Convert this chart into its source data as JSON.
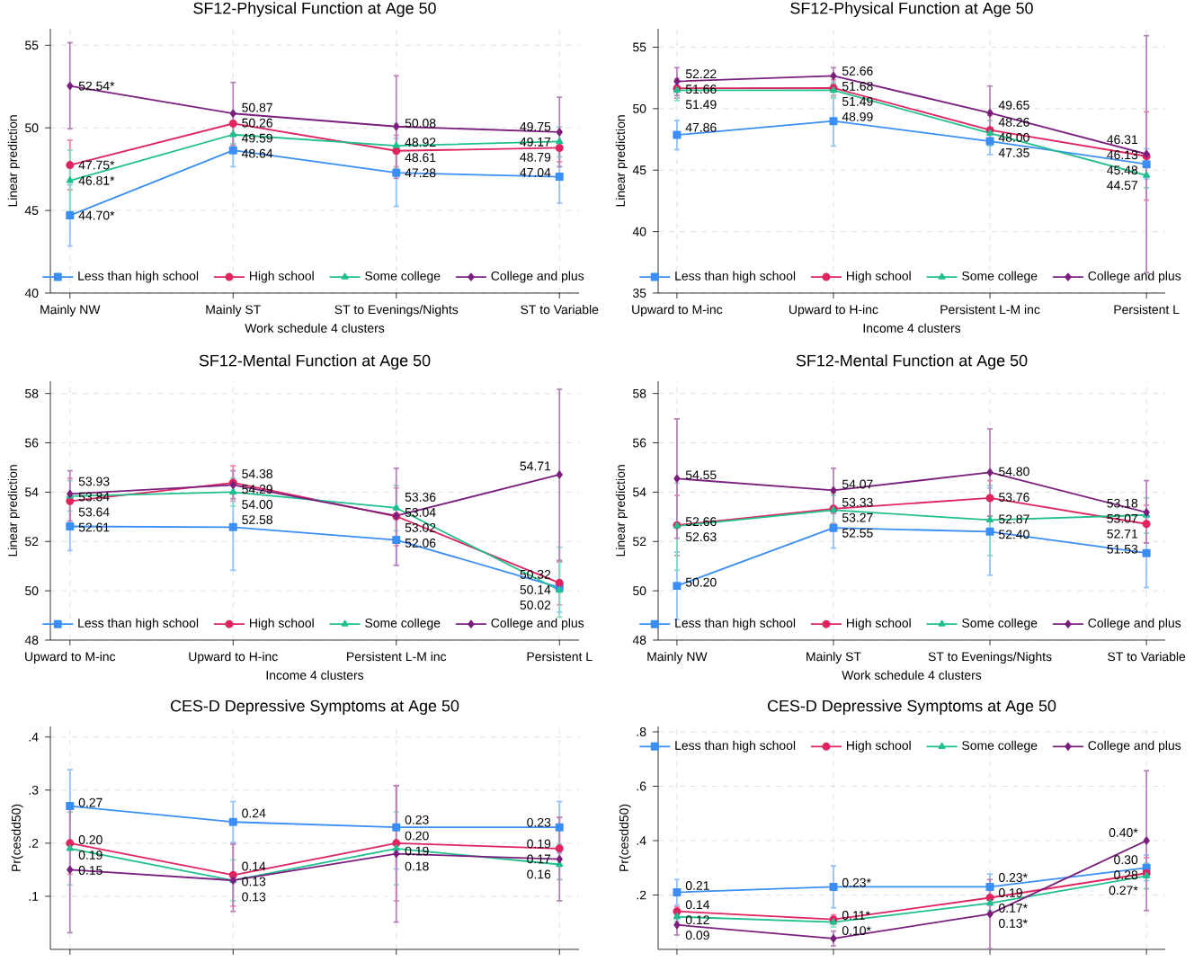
{
  "chart_data": [
    {
      "type": "line",
      "title": "SF12-Physical Function at Age 50",
      "xlabel": "Work schedule 4 clusters",
      "ylabel": "Linear prediction",
      "categories": [
        "Mainly NW",
        "Mainly ST",
        "ST to Evenings/Nights",
        "ST to Variable"
      ],
      "ylim": [
        40,
        56
      ],
      "yticks": [
        40,
        45,
        50,
        55
      ],
      "grid": true,
      "legend": "bottom",
      "series": [
        {
          "name": "Less than high school",
          "color": "#3a8ef6",
          "marker": "square",
          "values": [
            44.7,
            48.64,
            47.28,
            47.04
          ],
          "errors": [
            [
              42.8,
              46.6
            ],
            [
              47.6,
              49.7
            ],
            [
              45.2,
              49.4
            ],
            [
              45.4,
              48.7
            ]
          ],
          "value_labels": [
            "44.70*",
            "48.64",
            "47.28",
            "47.04"
          ]
        },
        {
          "name": "High school",
          "color": "#e0245e",
          "marker": "circle",
          "values": [
            47.75,
            50.26,
            48.61,
            48.79
          ],
          "errors": [
            [
              46.2,
              49.3
            ],
            [
              49.6,
              50.9
            ],
            [
              47.6,
              49.6
            ],
            [
              47.9,
              49.7
            ]
          ],
          "value_labels": [
            "47.75*",
            "50.26",
            "48.61",
            "48.79"
          ]
        },
        {
          "name": "Some college",
          "color": "#1fbf8f",
          "marker": "triangle",
          "values": [
            46.81,
            49.59,
            48.92,
            49.17
          ],
          "errors": [
            [
              44.9,
              48.7
            ],
            [
              49.0,
              50.2
            ],
            [
              47.5,
              50.3
            ],
            [
              48.2,
              50.1
            ]
          ],
          "value_labels": [
            "46.81*",
            "49.59",
            "48.92",
            "49.17"
          ]
        },
        {
          "name": "College and plus",
          "color": "#7b1f7f",
          "marker": "diamond",
          "values": [
            52.54,
            50.87,
            50.08,
            49.75
          ],
          "errors": [
            [
              49.9,
              55.2
            ],
            [
              48.9,
              52.8
            ],
            [
              46.9,
              53.2
            ],
            [
              47.6,
              51.9
            ]
          ],
          "value_labels": [
            "52.54*",
            "50.87",
            "50.08",
            "49.75"
          ]
        }
      ]
    },
    {
      "type": "line",
      "title": "SF12-Physical Function at Age 50",
      "xlabel": "Income 4 clusters",
      "ylabel": "Linear prediction",
      "categories": [
        "Upward to M-inc",
        "Upward to H-inc",
        "Persistent L-M inc",
        "Persistent L"
      ],
      "ylim": [
        35,
        56.5
      ],
      "yticks": [
        35,
        40,
        45,
        50,
        55
      ],
      "grid": true,
      "legend": "bottom",
      "series": [
        {
          "name": "Less than high school",
          "color": "#3a8ef6",
          "marker": "square",
          "values": [
            47.86,
            48.99,
            47.35,
            45.48
          ],
          "errors": [
            [
              46.6,
              49.1
            ],
            [
              46.9,
              51.1
            ],
            [
              46.2,
              48.5
            ],
            [
              44.2,
              46.8
            ]
          ],
          "value_labels": [
            "47.86",
            "48.99",
            "47.35",
            "45.48"
          ]
        },
        {
          "name": "High school",
          "color": "#e0245e",
          "marker": "circle",
          "values": [
            51.66,
            51.68,
            48.26,
            46.13
          ],
          "errors": [
            [
              50.8,
              52.5
            ],
            [
              51.0,
              52.4
            ],
            [
              47.0,
              49.5
            ],
            [
              42.5,
              49.8
            ]
          ],
          "value_labels": [
            "51.66",
            "51.68",
            "48.26",
            "46.13"
          ]
        },
        {
          "name": "Some college",
          "color": "#1fbf8f",
          "marker": "triangle",
          "values": [
            51.49,
            51.49,
            48.0,
            44.57
          ],
          "errors": [
            [
              50.6,
              52.4
            ],
            [
              50.8,
              52.2
            ],
            [
              46.9,
              49.1
            ],
            [
              43.5,
              45.6
            ]
          ],
          "value_labels": [
            "51.49",
            "51.49",
            "48.00",
            "44.57"
          ]
        },
        {
          "name": "College and plus",
          "color": "#7b1f7f",
          "marker": "diamond",
          "values": [
            52.22,
            52.66,
            49.65,
            46.31
          ],
          "errors": [
            [
              51.0,
              53.4
            ],
            [
              51.9,
              53.4
            ],
            [
              47.4,
              51.9
            ],
            [
              36.6,
              56.0
            ]
          ],
          "value_labels": [
            "52.22",
            "52.66",
            "49.65",
            "46.31"
          ]
        }
      ]
    },
    {
      "type": "line",
      "title": "SF12-Mental Function at Age 50",
      "xlabel": "Income 4 clusters",
      "ylabel": "Linear prediction",
      "categories": [
        "Upward to M-inc",
        "Upward to H-inc",
        "Persistent L-M inc",
        "Persistent L"
      ],
      "ylim": [
        48,
        58.5
      ],
      "yticks": [
        48,
        50,
        52,
        54,
        56,
        58
      ],
      "grid": true,
      "legend": "bottom",
      "series": [
        {
          "name": "Less than high school",
          "color": "#3a8ef6",
          "marker": "square",
          "values": [
            52.61,
            52.58,
            52.06,
            50.14
          ],
          "errors": [
            [
              51.6,
              53.6
            ],
            [
              50.8,
              54.4
            ],
            [
              51.0,
              53.1
            ],
            [
              49.1,
              51.2
            ]
          ],
          "value_labels": [
            "52.61",
            "52.58",
            "52.06",
            "50.14"
          ]
        },
        {
          "name": "High school",
          "color": "#e0245e",
          "marker": "circle",
          "values": [
            53.64,
            54.38,
            53.02,
            50.32
          ],
          "errors": [
            [
              52.7,
              54.6
            ],
            [
              53.6,
              55.1
            ],
            [
              51.8,
              54.2
            ],
            [
              49.4,
              51.2
            ]
          ],
          "value_labels": [
            "53.64",
            "54.38",
            "53.02",
            "50.32"
          ]
        },
        {
          "name": "Some college",
          "color": "#1fbf8f",
          "marker": "triangle",
          "values": [
            53.84,
            54.0,
            53.36,
            50.02
          ],
          "errors": [
            [
              53.2,
              54.5
            ],
            [
              53.4,
              54.6
            ],
            [
              52.4,
              54.3
            ],
            [
              48.9,
              51.8
            ]
          ],
          "value_labels": [
            "53.84",
            "54.00",
            "53.36",
            "50.02"
          ]
        },
        {
          "name": "College and plus",
          "color": "#7b1f7f",
          "marker": "diamond",
          "values": [
            53.93,
            54.29,
            53.04,
            54.71
          ],
          "errors": [
            [
              52.8,
              54.9
            ],
            [
              53.7,
              54.9
            ],
            [
              51.0,
              55.0
            ],
            [
              51.2,
              58.2
            ]
          ],
          "value_labels": [
            "53.93",
            "54.29",
            "53.04",
            "54.71"
          ]
        }
      ]
    },
    {
      "type": "line",
      "title": "SF12-Mental Function at Age 50",
      "xlabel": "Work schedule 4 clusters",
      "ylabel": "Linear prediction",
      "categories": [
        "Mainly NW",
        "Mainly ST",
        "ST to Evenings/Nights",
        "ST to Variable"
      ],
      "ylim": [
        48,
        58.5
      ],
      "yticks": [
        48,
        50,
        52,
        54,
        56,
        58
      ],
      "grid": true,
      "legend": "bottom",
      "series": [
        {
          "name": "Less than high school",
          "color": "#3a8ef6",
          "marker": "square",
          "values": [
            50.2,
            52.55,
            52.4,
            51.53
          ],
          "errors": [
            [
              48.8,
              51.6
            ],
            [
              51.7,
              53.4
            ],
            [
              50.6,
              54.2
            ],
            [
              50.1,
              53.0
            ]
          ],
          "value_labels": [
            "50.20",
            "52.55",
            "52.40",
            "51.53"
          ]
        },
        {
          "name": "High school",
          "color": "#e0245e",
          "marker": "circle",
          "values": [
            52.66,
            53.33,
            53.76,
            52.71
          ],
          "errors": [
            [
              51.4,
              53.9
            ],
            [
              52.7,
              54.0
            ],
            [
              53.0,
              54.5
            ],
            [
              51.9,
              53.5
            ]
          ],
          "value_labels": [
            "52.66",
            "53.33",
            "53.76",
            "52.71"
          ]
        },
        {
          "name": "Some college",
          "color": "#1fbf8f",
          "marker": "triangle",
          "values": [
            52.63,
            53.27,
            52.87,
            53.07
          ],
          "errors": [
            [
              50.8,
              54.4
            ],
            [
              52.6,
              53.9
            ],
            [
              51.4,
              54.3
            ],
            [
              52.3,
              53.8
            ]
          ],
          "value_labels": [
            "52.63",
            "53.27",
            "52.87",
            "53.07"
          ]
        },
        {
          "name": "College and plus",
          "color": "#7b1f7f",
          "marker": "diamond",
          "values": [
            54.55,
            54.07,
            54.8,
            53.18
          ],
          "errors": [
            [
              52.1,
              57.0
            ],
            [
              53.1,
              55.0
            ],
            [
              53.0,
              56.6
            ],
            [
              51.9,
              54.5
            ]
          ],
          "value_labels": [
            "54.55",
            "54.07",
            "54.80",
            "53.18"
          ]
        }
      ]
    },
    {
      "type": "line",
      "title": "CES-D Depressive Symptoms at Age 50",
      "ylabel": "Pr(cesdd50)",
      "categories": [
        null,
        null,
        null,
        null
      ],
      "tick_labels": "y",
      "ylim": [
        0,
        0.42
      ],
      "yticks": [
        {
          "value": 0.1,
          "label": ".1"
        },
        {
          "value": 0.2,
          "label": ".2"
        },
        {
          "value": 0.3,
          "label": ".3"
        },
        {
          "value": 0.4,
          "label": ".4"
        }
      ],
      "grid": true,
      "legend": false,
      "series": [
        {
          "color": "#3a8ef6",
          "marker": "square",
          "values": [
            0.27,
            0.24,
            0.23,
            0.23
          ],
          "errors": [
            [
              0.2,
              0.34
            ],
            [
              0.2,
              0.28
            ],
            [
              0.15,
              0.31
            ],
            [
              0.18,
              0.28
            ]
          ],
          "value_labels": [
            "0.27",
            "0.24",
            "0.23",
            "0.23"
          ]
        },
        {
          "color": "#e0245e",
          "marker": "circle",
          "values": [
            0.2,
            0.14,
            0.2,
            0.19
          ],
          "errors": [
            [
              0.14,
              0.26
            ],
            [
              0.08,
              0.2
            ],
            [
              0.09,
              0.31
            ],
            [
              0.13,
              0.25
            ]
          ],
          "value_labels": [
            "0.20",
            "0.14",
            "0.20",
            "0.19"
          ]
        },
        {
          "color": "#1fbf8f",
          "marker": "triangle",
          "values": [
            0.19,
            0.13,
            0.19,
            0.16
          ],
          "errors": [
            [
              0.12,
              0.26
            ],
            [
              0.09,
              0.17
            ],
            [
              0.12,
              0.26
            ],
            [
              0.13,
              0.2
            ]
          ],
          "value_labels": [
            "0.19",
            "0.13",
            "0.19",
            "0.16"
          ]
        },
        {
          "color": "#7b1f7f",
          "marker": "diamond",
          "values": [
            0.15,
            0.13,
            0.18,
            0.17
          ],
          "errors": [
            [
              0.03,
              0.27
            ],
            [
              0.07,
              0.2
            ],
            [
              0.05,
              0.31
            ],
            [
              0.09,
              0.25
            ]
          ],
          "value_labels": [
            "0.15",
            "0.13",
            "0.18",
            "0.17"
          ]
        }
      ]
    },
    {
      "type": "line",
      "title": "CES-D Depressive Symptoms at Age 50",
      "ylabel": "Pr(cesdd50)",
      "categories": [
        null,
        null,
        null,
        null
      ],
      "tick_labels": "y",
      "ylim": [
        0,
        0.82
      ],
      "yticks": [
        {
          "value": 0.2,
          "label": ".2"
        },
        {
          "value": 0.4,
          "label": ".4"
        },
        {
          "value": 0.6,
          "label": ".6"
        },
        {
          "value": 0.8,
          "label": ".8"
        }
      ],
      "grid": true,
      "legend": "top",
      "series": [
        {
          "name": "Less than high school",
          "color": "#3a8ef6",
          "marker": "square",
          "values": [
            0.21,
            0.23,
            0.23,
            0.3
          ],
          "errors": [
            [
              0.16,
              0.26
            ],
            [
              0.15,
              0.31
            ],
            [
              0.18,
              0.28
            ],
            [
              0.25,
              0.35
            ]
          ],
          "value_labels": [
            "0.21",
            "0.23*",
            "0.23*",
            "0.30"
          ]
        },
        {
          "name": "High school",
          "color": "#e0245e",
          "marker": "circle",
          "values": [
            0.14,
            0.11,
            0.19,
            0.28
          ],
          "errors": [
            [
              0.12,
              0.16
            ],
            [
              0.09,
              0.13
            ],
            [
              0.16,
              0.22
            ],
            [
              0.22,
              0.34
            ]
          ],
          "value_labels": [
            "0.14",
            "0.11*",
            "0.19",
            "0.28"
          ]
        },
        {
          "name": "Some college",
          "color": "#1fbf8f",
          "marker": "triangle",
          "values": [
            0.12,
            0.1,
            0.17,
            0.27
          ],
          "errors": [
            [
              0.1,
              0.14
            ],
            [
              0.08,
              0.12
            ],
            [
              0.14,
              0.2
            ],
            [
              0.22,
              0.32
            ]
          ],
          "value_labels": [
            "0.12",
            "0.10*",
            "0.17*",
            "0.27*"
          ]
        },
        {
          "name": "College and plus",
          "color": "#7b1f7f",
          "marker": "diamond",
          "values": [
            0.09,
            0.04,
            0.13,
            0.4
          ],
          "errors": [
            [
              0.05,
              0.13
            ],
            [
              0.01,
              0.07
            ],
            [
              0.0,
              0.26
            ],
            [
              0.14,
              0.66
            ]
          ],
          "value_labels": [
            "0.09",
            null,
            "0.13*",
            "0.40*"
          ]
        }
      ]
    }
  ]
}
